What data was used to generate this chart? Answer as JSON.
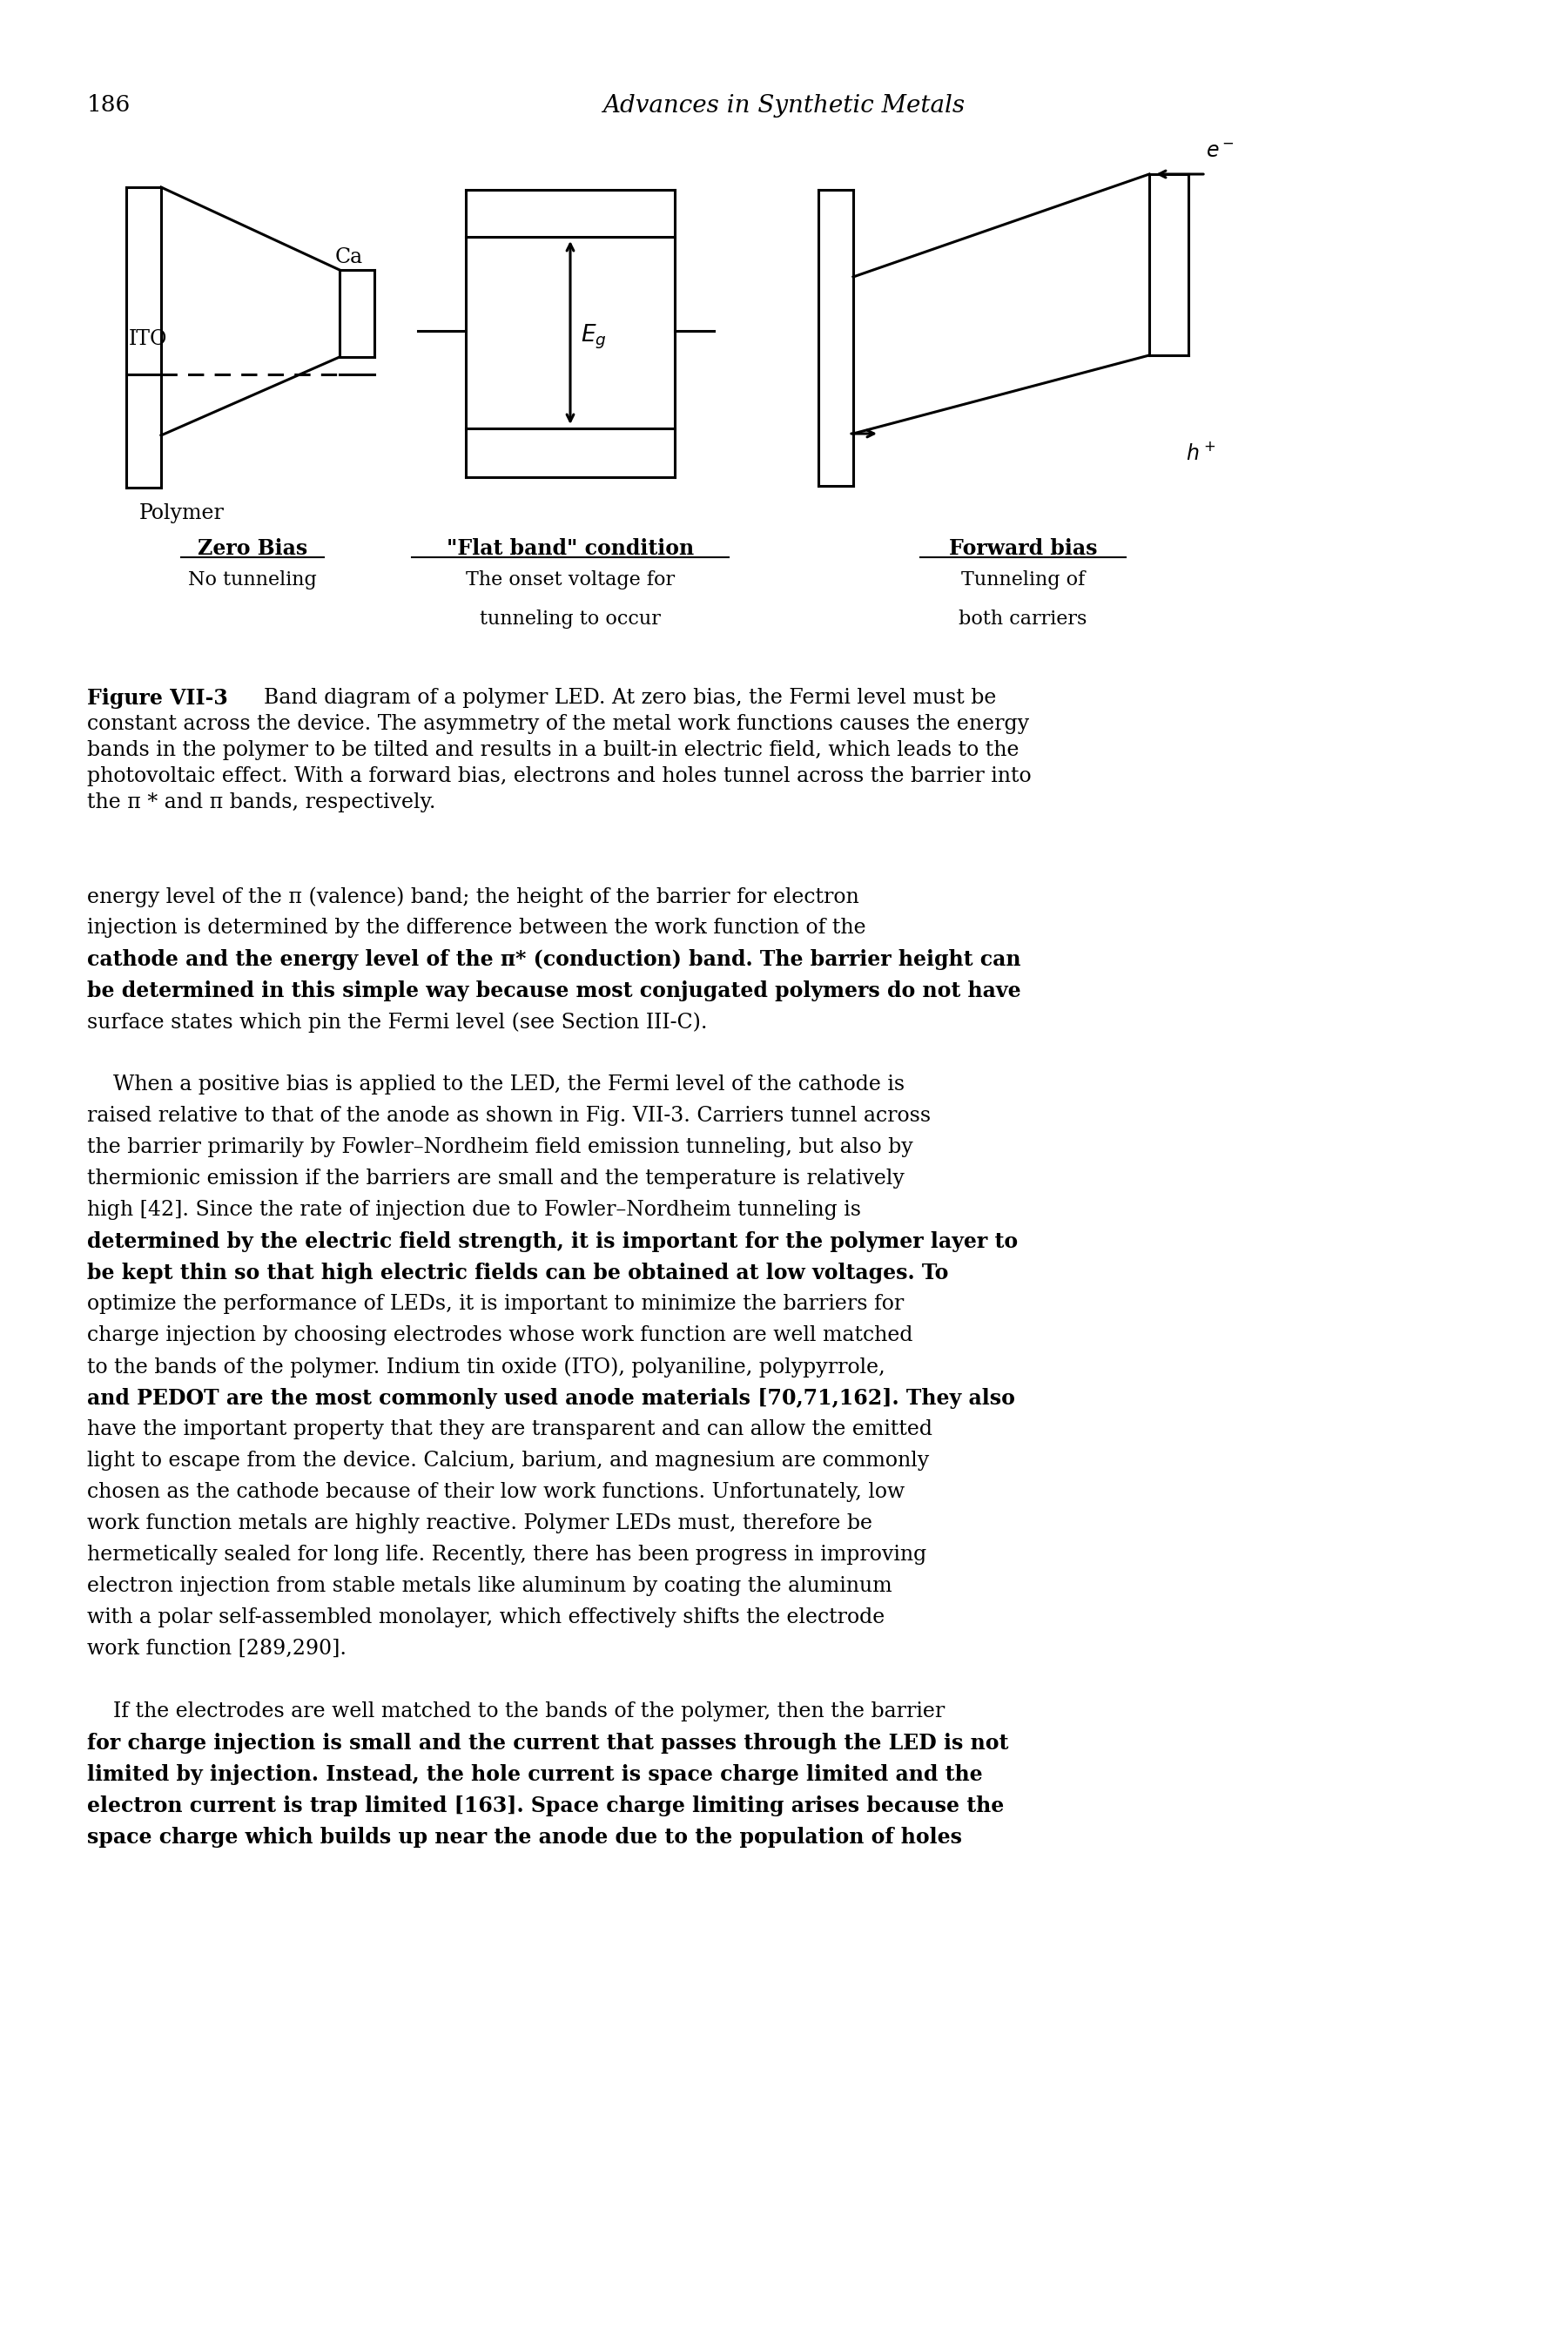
{
  "page_number": "186",
  "header_title": "Advances in Synthetic Metals",
  "bg_color": "#ffffff",
  "fig_label": "Figure VII-3",
  "label_zero_bias_title": "Zero Bias",
  "label_zero_bias_sub": "No tunneling",
  "label_flat_band_title": "\"Flat band\" condition",
  "label_flat_band_sub1": "The onset voltage for",
  "label_flat_band_sub2": "tunneling to occur",
  "label_forward_bias_title": "Forward bias",
  "label_forward_bias_sub1": "Tunneling of",
  "label_forward_bias_sub2": "both carriers",
  "label_ITO": "ITO",
  "label_Ca": "Ca",
  "label_Polymer": "Polymer",
  "label_Eg": "$E_g$",
  "label_eminus": "$e^-$",
  "label_hplus": "$h^+$",
  "caption_line0_bold": "Figure VII-3",
  "caption_line0_rest": "  Band diagram of a polymer LED. At zero bias, the Fermi level must be",
  "caption_line1": "constant across the device. The asymmetry of the metal work functions causes the energy",
  "caption_line2": "bands in the polymer to be tilted and results in a built-in electric field, which leads to the",
  "caption_line3": "photovoltaic effect. With a forward bias, electrons and holes tunnel across the barrier into",
  "caption_line4": "the π * and π bands, respectively.",
  "body_lines": [
    [
      "energy level of the π (valence) band; the height of the barrier for electron",
      false
    ],
    [
      "injection is determined by the difference between the work function of the",
      false
    ],
    [
      "cathode and the energy level of the π* (conduction) band. The barrier height can",
      true
    ],
    [
      "be determined in this simple way because most conjugated polymers do not have",
      true
    ],
    [
      "surface states which pin the Fermi level (see Section III-C).",
      false
    ],
    [
      "",
      false
    ],
    [
      "    When a positive bias is applied to the LED, the Fermi level of the cathode is",
      false
    ],
    [
      "raised relative to that of the anode as shown in Fig. VII-3. Carriers tunnel across",
      false
    ],
    [
      "the barrier primarily by Fowler–Nordheim field emission tunneling, but also by",
      false
    ],
    [
      "thermionic emission if the barriers are small and the temperature is relatively",
      false
    ],
    [
      "high [42]. Since the rate of injection due to Fowler–Nordheim tunneling is",
      false
    ],
    [
      "determined by the electric field strength, it is important for the polymer layer to",
      true
    ],
    [
      "be kept thin so that high electric fields can be obtained at low voltages. To",
      true
    ],
    [
      "optimize the performance of LEDs, it is important to minimize the barriers for",
      false
    ],
    [
      "charge injection by choosing electrodes whose work function are well matched",
      false
    ],
    [
      "to the bands of the polymer. Indium tin oxide (ITO), polyaniline, polypyrrole,",
      false
    ],
    [
      "and PEDOT are the most commonly used anode materials [70,71,162]. They also",
      true
    ],
    [
      "have the important property that they are transparent and can allow the emitted",
      false
    ],
    [
      "light to escape from the device. Calcium, barium, and magnesium are commonly",
      false
    ],
    [
      "chosen as the cathode because of their low work functions. Unfortunately, low",
      false
    ],
    [
      "work function metals are highly reactive. Polymer LEDs must, therefore be",
      false
    ],
    [
      "hermetically sealed for long life. Recently, there has been progress in improving",
      false
    ],
    [
      "electron injection from stable metals like aluminum by coating the aluminum",
      false
    ],
    [
      "with a polar self-assembled monolayer, which effectively shifts the electrode",
      false
    ],
    [
      "work function [289,290].",
      false
    ],
    [
      "",
      false
    ],
    [
      "    If the electrodes are well matched to the bands of the polymer, then the barrier",
      false
    ],
    [
      "for charge injection is small and the current that passes through the LED is not",
      true
    ],
    [
      "limited by injection. Instead, the hole current is space charge limited and the",
      true
    ],
    [
      "electron current is trap limited [163]. Space charge limiting arises because the",
      true
    ],
    [
      "space charge which builds up near the anode due to the population of holes",
      true
    ]
  ]
}
